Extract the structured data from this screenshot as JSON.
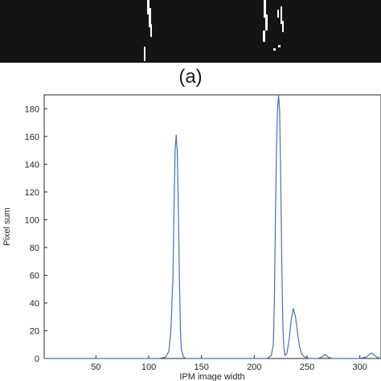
{
  "figure": {
    "panel_label": "(a)",
    "binary_image": {
      "background": "#141414",
      "foreground": "#ffffff"
    }
  },
  "chart_data": {
    "type": "line",
    "title": "",
    "xlabel": "IPM image width",
    "ylabel": "Pixel sum",
    "xlim": [
      1,
      320
    ],
    "ylim": [
      0,
      190
    ],
    "xticks": [
      50,
      100,
      150,
      200,
      250,
      300
    ],
    "yticks": [
      0,
      20,
      40,
      60,
      80,
      100,
      120,
      140,
      160,
      180
    ],
    "grid": false,
    "line_color": "#4a6fb5",
    "series": [
      {
        "name": "",
        "x": [
          1,
          110,
          116,
          119,
          121,
          123,
          124,
          125,
          126,
          127,
          128,
          129,
          130,
          131,
          133,
          135,
          140,
          200,
          212,
          216,
          218,
          219,
          220,
          221,
          222,
          223,
          224,
          225,
          226,
          227,
          228,
          229,
          231,
          233,
          235,
          237,
          239,
          240,
          241,
          243,
          245,
          248,
          252,
          260,
          264,
          267,
          270,
          274,
          300,
          306,
          309,
          311,
          313,
          316,
          320
        ],
        "y": [
          0,
          0,
          1,
          5,
          20,
          60,
          110,
          150,
          161,
          150,
          110,
          60,
          20,
          6,
          1,
          0,
          0,
          0,
          0,
          2,
          10,
          40,
          100,
          150,
          180,
          190,
          178,
          130,
          70,
          25,
          8,
          2,
          4,
          14,
          28,
          36,
          30,
          24,
          18,
          8,
          3,
          1,
          0,
          0,
          1,
          3,
          1,
          0,
          0,
          1,
          3,
          4,
          3,
          1,
          0
        ]
      }
    ]
  }
}
